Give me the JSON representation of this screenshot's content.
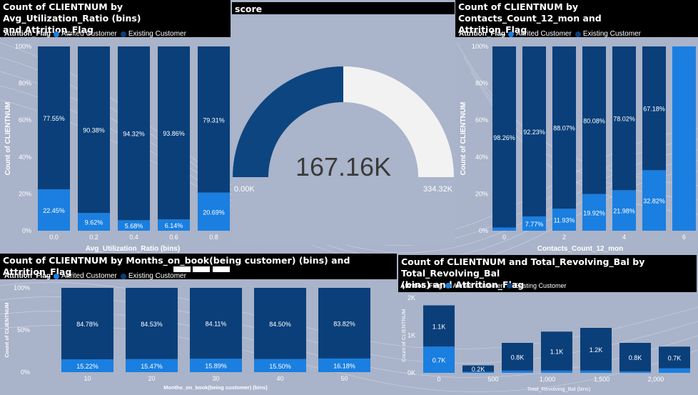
{
  "colors": {
    "attrited": "#1a7fe0",
    "existing": "#0a3f7a",
    "gauge_fill": "#0d4580",
    "gauge_rest": "#f2f2f2",
    "background": "#a9b3c9"
  },
  "legend": {
    "title": "Attrition_Flag",
    "attrited": "Attrited Customer",
    "existing": "Existing Customer"
  },
  "gauge": {
    "title": "score",
    "value": 167.16,
    "value_label": "167.16K",
    "min_label": "0.00K",
    "max_label": "334.32K",
    "min": 0,
    "max": 334.32
  },
  "charts": [
    {
      "id": "util",
      "title_lines": [
        "Count of CLIENTNUM by Avg_Utilization_Ratio (bins)",
        "and Attrition_Flag"
      ],
      "chart_data": {
        "type": "bar",
        "stacked": "percent",
        "xlabel": "Avg_Utilization_Ratio (bins)",
        "ylabel": "Count of CLIENTNUM",
        "y_ticks": [
          "100%",
          "80%",
          "60%",
          "40%",
          "20%",
          "0%"
        ],
        "categories": [
          "0.0",
          "0.2",
          "0.4",
          "0.6",
          "0.8"
        ],
        "series": [
          {
            "name": "Attrited Customer",
            "values": [
              22.45,
              9.62,
              5.68,
              6.14,
              20.69
            ],
            "labels": [
              "22.45%",
              "9.62%",
              "5.68%",
              "6.14%",
              "20.69%"
            ]
          },
          {
            "name": "Existing Customer",
            "values": [
              77.55,
              90.38,
              94.32,
              93.86,
              79.31
            ],
            "labels": [
              "77.55%",
              "90.38%",
              "94.32%",
              "93.86%",
              "79.31%"
            ]
          }
        ]
      }
    },
    {
      "id": "contacts",
      "title_lines": [
        "Count of CLIENTNUM by Contacts_Count_12_mon and",
        "Attrition_Flag"
      ],
      "chart_data": {
        "type": "bar",
        "stacked": "percent",
        "xlabel": "Contacts_Count_12_mon",
        "ylabel": "Count of CLIENTNUM",
        "y_ticks": [
          "100%",
          "80%",
          "60%",
          "40%",
          "20%",
          "0%"
        ],
        "categories": [
          "0",
          "1",
          "2",
          "3",
          "4",
          "5",
          "6"
        ],
        "x_tick_labels": [
          "0",
          "",
          "2",
          "",
          "4",
          "",
          "6"
        ],
        "series": [
          {
            "name": "Attrited Customer",
            "values": [
              1.74,
              7.77,
              11.93,
              19.92,
              21.98,
              32.82,
              100
            ],
            "labels": [
              "",
              "7.77%",
              "11.93%",
              "19.92%",
              "21.98%",
              "32.82%",
              ""
            ]
          },
          {
            "name": "Existing Customer",
            "values": [
              98.26,
              92.23,
              88.07,
              80.08,
              78.02,
              67.18,
              0
            ],
            "labels": [
              "98.26%",
              "92.23%",
              "88.07%",
              "80.08%",
              "78.02%",
              "67.18%",
              ""
            ]
          }
        ]
      }
    },
    {
      "id": "months",
      "title_lines": [
        "Count of CLIENTNUM by Months_on_book(being customer) (bins) and Attrition_Flag"
      ],
      "chart_data": {
        "type": "bar",
        "stacked": "percent",
        "xlabel": "Months_on_book(being customer) (bins)",
        "ylabel": "Count of CLIENTNUM",
        "y_ticks": [
          "100%",
          "50%",
          "0%"
        ],
        "categories": [
          "10",
          "20",
          "30",
          "40",
          "50"
        ],
        "series": [
          {
            "name": "Attrited Customer",
            "values": [
              15.22,
              15.47,
              15.89,
              15.5,
              16.18
            ],
            "labels": [
              "15.22%",
              "15.47%",
              "15.89%",
              "15.50%",
              "16.18%"
            ]
          },
          {
            "name": "Existing Customer",
            "values": [
              84.78,
              84.53,
              84.11,
              84.5,
              83.82
            ],
            "labels": [
              "84.78%",
              "84.53%",
              "84.11%",
              "84.50%",
              "83.82%"
            ]
          }
        ]
      }
    },
    {
      "id": "revolving",
      "title_lines": [
        "Count of CLIENTNUM and Total_Revolving_Bal by Total_Revolving_Bal",
        "(bins) and Attrition_Flag"
      ],
      "chart_data": {
        "type": "bar",
        "stacked": "count",
        "xlabel": "Total_Revolving_Bal (bins)",
        "ylabel": "Count of CLIENTNUM",
        "y_ticks": [
          "2K",
          "1K",
          "0K"
        ],
        "ylim": [
          0,
          2000
        ],
        "categories": [
          "0",
          "",
          "500",
          "",
          "1,000",
          "",
          "1,500",
          "",
          "2,000",
          ""
        ],
        "x_tick_labels": [
          "0",
          "500",
          "1,000",
          "1,500",
          "2,000"
        ],
        "bars": [
          {
            "attrited": 700,
            "existing": 1100,
            "top_label": "1.1K",
            "mid_label": "0.7K"
          },
          {
            "attrited": 30,
            "existing": 170,
            "top_label": "0.2K",
            "mid_label": ""
          },
          {
            "attrited": 60,
            "existing": 740,
            "top_label": "0.8K",
            "mid_label": ""
          },
          {
            "attrited": 60,
            "existing": 1040,
            "top_label": "1.1K",
            "mid_label": ""
          },
          {
            "attrited": 60,
            "existing": 1140,
            "top_label": "1.2K",
            "mid_label": ""
          },
          {
            "attrited": 40,
            "existing": 760,
            "top_label": "0.8K",
            "mid_label": ""
          },
          {
            "attrited": 120,
            "existing": 580,
            "top_label": "0.7K",
            "mid_label": ""
          }
        ]
      }
    }
  ]
}
